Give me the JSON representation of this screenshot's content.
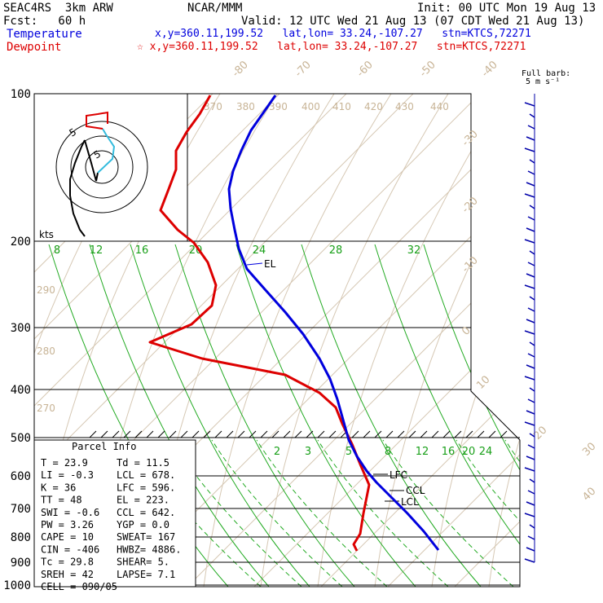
{
  "header": {
    "model": "SEAC4RS  3km ARW",
    "source": "NCAR/MMM",
    "init": "Init: 00 UTC Mon 19 Aug 13",
    "fcst": "Fcst:   60 h",
    "valid": "Valid: 12 UTC Wed 21 Aug 13 (07 CDT Wed 21 Aug 13)",
    "temperature_label": "Temperature",
    "temperature_info": "x,y=360.11,199.52   lat,lon= 33.24,-107.27   stn=KTCS,72271",
    "dewpoint_label": "Dewpoint",
    "dewpoint_info": "☆ x,y=360.11,199.52   lat,lon= 33.24,-107.27   stn=KTCS,72271",
    "full_barb": "Full barb:",
    "full_barb_units": "5 m s⁻¹"
  },
  "chart_data": {
    "type": "line",
    "pressure_levels": [
      "100",
      "200",
      "300",
      "400",
      "500",
      "600",
      "700",
      "800",
      "900",
      "1000"
    ],
    "isotherm_labels": [
      "-80",
      "-70",
      "-60",
      "-50",
      "-40",
      "-30",
      "-20",
      "-10",
      "0",
      "10",
      "20",
      "30",
      "40"
    ],
    "theta_labels": [
      "370",
      "380",
      "390",
      "400",
      "410",
      "420",
      "430",
      "440",
      "290",
      "280",
      "270"
    ],
    "mixing_ratio_upper": [
      "8",
      "12",
      "16",
      "20",
      "24",
      "28",
      "32"
    ],
    "mixing_ratio_lower": [
      "2",
      "3",
      "5",
      "8",
      "12",
      "16",
      "20",
      "24"
    ],
    "level_markers": {
      "el": "EL",
      "lfc": "LFC",
      "ccl": "CCL",
      "lcl": "LCL"
    },
    "hodograph_units": "kts",
    "hodograph_rings": [
      "5",
      "5"
    ],
    "series": [
      {
        "name": "Temperature",
        "color": "#0000dd"
      },
      {
        "name": "Dewpoint",
        "color": "#dd0000"
      }
    ],
    "temperature_profile": [
      [
        338,
        117
      ],
      [
        322,
        140
      ],
      [
        308,
        160
      ],
      [
        296,
        185
      ],
      [
        286,
        210
      ],
      [
        281,
        232
      ],
      [
        283,
        256
      ],
      [
        288,
        282
      ],
      [
        293,
        305
      ],
      [
        303,
        330
      ],
      [
        325,
        355
      ],
      [
        350,
        383
      ],
      [
        372,
        410
      ],
      [
        392,
        440
      ],
      [
        405,
        465
      ],
      [
        414,
        490
      ],
      [
        421,
        515
      ],
      [
        428,
        540
      ],
      [
        438,
        560
      ],
      [
        450,
        578
      ],
      [
        462,
        592
      ],
      [
        480,
        610
      ],
      [
        500,
        630
      ],
      [
        520,
        652
      ],
      [
        538,
        675
      ]
    ],
    "dewpoint_profile": [
      [
        258,
        117
      ],
      [
        245,
        140
      ],
      [
        229,
        162
      ],
      [
        216,
        185
      ],
      [
        216,
        208
      ],
      [
        207,
        232
      ],
      [
        197,
        258
      ],
      [
        218,
        282
      ],
      [
        238,
        298
      ],
      [
        255,
        322
      ],
      [
        265,
        350
      ],
      [
        260,
        375
      ],
      [
        235,
        398
      ],
      [
        184,
        420
      ],
      [
        248,
        440
      ],
      [
        350,
        460
      ],
      [
        392,
        482
      ],
      [
        412,
        500
      ],
      [
        420,
        520
      ],
      [
        432,
        545
      ],
      [
        443,
        572
      ],
      [
        453,
        595
      ],
      [
        450,
        610
      ],
      [
        446,
        630
      ],
      [
        442,
        655
      ],
      [
        434,
        668
      ],
      [
        438,
        676
      ]
    ],
    "wind_barbs_x": 656,
    "parcel_info": {
      "title": "Parcel Info",
      "rows": [
        [
          "T  =    23.9",
          "Td =  11.5"
        ],
        [
          "LI =    -0.3",
          "LCL =  678."
        ],
        [
          "K  =      36",
          "LFC =  596."
        ],
        [
          "TT =      48",
          "EL  =  223."
        ],
        [
          "SWI =   -0.6",
          "CCL =  642."
        ],
        [
          "PW =    3.26",
          "YGP =   0.0"
        ],
        [
          "CAPE =    10",
          "SWEAT=  167"
        ],
        [
          "CIN =   -406",
          "HWBZ= 4886."
        ],
        [
          "Tc =    29.8",
          "SHEAR=   5."
        ],
        [
          "SREH =    42",
          "LAPSE=  7.1"
        ],
        [
          "CELL = 090/05",
          ""
        ]
      ]
    }
  }
}
